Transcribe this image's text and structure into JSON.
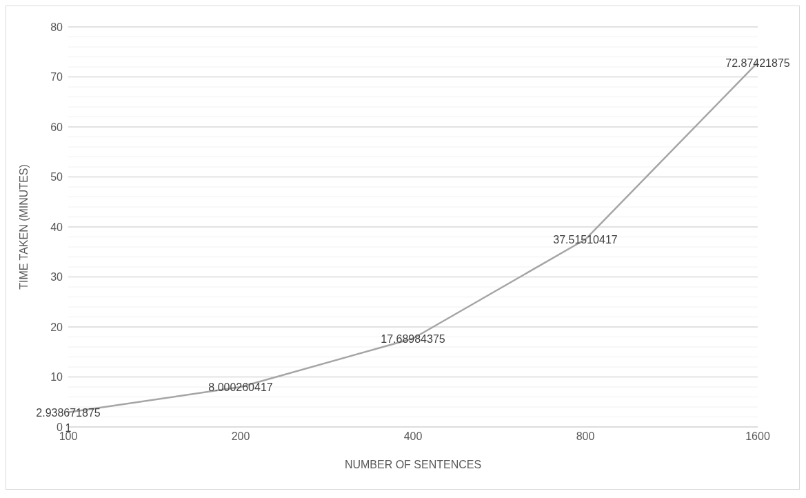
{
  "chart_data": {
    "type": "line",
    "xlabel": "NUMBER OF SENTENCES",
    "ylabel": "TIME TAKEN (MINUTES)",
    "categories": [
      "100",
      "200",
      "400",
      "800",
      "1600"
    ],
    "series": [
      {
        "color": "#a5a5a5",
        "values": [
          2.938671875,
          8.000260417,
          17.68984375,
          37.51510417,
          72.87421875
        ]
      }
    ],
    "data_labels": true,
    "marker": "none",
    "grid": "y",
    "legend": false,
    "ylim": [
      0,
      80
    ],
    "yticks": [
      0,
      {
        "value": 2,
        "label": null
      },
      {
        "value": 4,
        "label": null
      },
      {
        "value": 6,
        "label": null
      },
      {
        "value": 8,
        "label": null
      },
      10,
      {
        "value": 12,
        "label": null
      },
      {
        "value": 14,
        "label": null
      },
      {
        "value": 16,
        "label": null
      },
      {
        "value": 18,
        "label": null
      },
      20,
      {
        "value": 22,
        "label": null
      },
      {
        "value": 24,
        "label": null
      },
      {
        "value": 26,
        "label": null
      },
      {
        "value": 28,
        "label": null
      },
      30,
      {
        "value": 32,
        "label": null
      },
      {
        "value": 34,
        "label": null
      },
      {
        "value": 36,
        "label": null
      },
      {
        "value": 38,
        "label": null
      },
      40,
      {
        "value": 42,
        "label": null
      },
      {
        "value": 44,
        "label": null
      },
      {
        "value": 46,
        "label": null
      },
      {
        "value": 48,
        "label": null
      },
      50,
      {
        "value": 52,
        "label": null
      },
      {
        "value": 54,
        "label": null
      },
      {
        "value": 56,
        "label": null
      },
      {
        "value": 58,
        "label": null
      },
      60,
      {
        "value": 62,
        "label": null
      },
      {
        "value": 64,
        "label": null
      },
      {
        "value": 66,
        "label": null
      },
      {
        "value": 68,
        "label": null
      },
      70,
      {
        "value": 72,
        "label": null
      },
      {
        "value": 74,
        "label": null
      },
      {
        "value": 76,
        "label": null
      },
      {
        "value": 78,
        "label": null
      },
      80
    ],
    "annotations": [
      "1"
    ]
  }
}
